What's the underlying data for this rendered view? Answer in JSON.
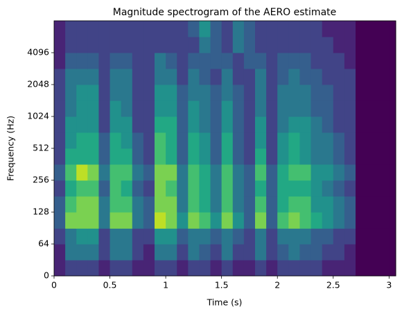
{
  "chart_data": {
    "type": "spectrogram",
    "title": "Magnitude spectrogram of the AERO estimate",
    "x_label": "Time (s)",
    "y_label": "Frequency (Hz)",
    "colormap": "viridis",
    "y_scale": "symlog2",
    "y_linthresh": 64,
    "xlim": [
      0,
      3.06
    ],
    "ylim": [
      0,
      8192
    ],
    "xticks": [
      0,
      0.5,
      1,
      1.5,
      2,
      2.5,
      3
    ],
    "yticks": [
      0,
      64,
      128,
      256,
      512,
      1024,
      2048,
      4096
    ],
    "x_edges": [
      0,
      0.1,
      0.2,
      0.3,
      0.4,
      0.5,
      0.6,
      0.7,
      0.8,
      0.9,
      1.0,
      1.1,
      1.2,
      1.3,
      1.4,
      1.5,
      1.6,
      1.7,
      1.8,
      1.9,
      2.0,
      2.1,
      2.2,
      2.3,
      2.4,
      2.5,
      2.6,
      2.7,
      2.8,
      2.9,
      3.0,
      3.06
    ],
    "y_edges": [
      0,
      32,
      64,
      90,
      128,
      181,
      256,
      362,
      512,
      724,
      1024,
      1448,
      2048,
      2896,
      4096,
      5793,
      8192
    ],
    "values": [
      [
        0.1,
        0.2,
        0.2,
        0.2,
        0.1,
        0.2,
        0.2,
        0.1,
        0.1,
        0.2,
        0.2,
        0.1,
        0.2,
        0.2,
        0.1,
        0.2,
        0.1,
        0.1,
        0.2,
        0.1,
        0.2,
        0.2,
        0.2,
        0.2,
        0.1,
        0.1,
        0.1,
        0,
        0,
        0,
        0
      ],
      [
        0.1,
        0.4,
        0.4,
        0.4,
        0.2,
        0.4,
        0.4,
        0.2,
        0.1,
        0.4,
        0.4,
        0.2,
        0.4,
        0.3,
        0.2,
        0.4,
        0.2,
        0.2,
        0.4,
        0.2,
        0.3,
        0.4,
        0.3,
        0.3,
        0.2,
        0.2,
        0.1,
        0,
        0,
        0,
        0
      ],
      [
        0.2,
        0.4,
        0.5,
        0.5,
        0.2,
        0.4,
        0.4,
        0.2,
        0.2,
        0.5,
        0.5,
        0.3,
        0.4,
        0.4,
        0.3,
        0.4,
        0.3,
        0.2,
        0.4,
        0.2,
        0.4,
        0.4,
        0.4,
        0.3,
        0.3,
        0.2,
        0.2,
        0,
        0,
        0,
        0
      ],
      [
        0.3,
        0.8,
        0.8,
        0.8,
        0.4,
        0.8,
        0.8,
        0.4,
        0.3,
        0.9,
        0.8,
        0.5,
        0.8,
        0.7,
        0.5,
        0.8,
        0.5,
        0.3,
        0.8,
        0.3,
        0.7,
        0.8,
        0.7,
        0.6,
        0.5,
        0.4,
        0.3,
        0,
        0,
        0,
        0
      ],
      [
        0.3,
        0.7,
        0.8,
        0.8,
        0.4,
        0.7,
        0.7,
        0.4,
        0.3,
        0.8,
        0.8,
        0.4,
        0.7,
        0.6,
        0.4,
        0.7,
        0.4,
        0.3,
        0.7,
        0.3,
        0.6,
        0.7,
        0.7,
        0.5,
        0.5,
        0.4,
        0.3,
        0,
        0,
        0,
        0
      ],
      [
        0.2,
        0.6,
        0.7,
        0.7,
        0.3,
        0.7,
        0.6,
        0.3,
        0.2,
        0.8,
        0.7,
        0.4,
        0.7,
        0.6,
        0.4,
        0.7,
        0.4,
        0.3,
        0.6,
        0.3,
        0.6,
        0.6,
        0.6,
        0.5,
        0.4,
        0.3,
        0.2,
        0,
        0,
        0,
        0
      ],
      [
        0.3,
        0.7,
        0.9,
        0.8,
        0.4,
        0.7,
        0.7,
        0.4,
        0.3,
        0.8,
        0.8,
        0.4,
        0.7,
        0.6,
        0.4,
        0.7,
        0.4,
        0.3,
        0.7,
        0.3,
        0.6,
        0.7,
        0.7,
        0.5,
        0.5,
        0.4,
        0.3,
        0,
        0,
        0,
        0
      ],
      [
        0.2,
        0.6,
        0.6,
        0.6,
        0.3,
        0.6,
        0.6,
        0.3,
        0.2,
        0.7,
        0.6,
        0.3,
        0.6,
        0.5,
        0.3,
        0.6,
        0.3,
        0.2,
        0.6,
        0.2,
        0.5,
        0.6,
        0.5,
        0.4,
        0.4,
        0.3,
        0.2,
        0,
        0,
        0,
        0
      ],
      [
        0.2,
        0.5,
        0.6,
        0.6,
        0.3,
        0.6,
        0.5,
        0.3,
        0.2,
        0.7,
        0.6,
        0.3,
        0.6,
        0.5,
        0.3,
        0.6,
        0.3,
        0.2,
        0.5,
        0.2,
        0.5,
        0.6,
        0.5,
        0.4,
        0.4,
        0.3,
        0.2,
        0,
        0,
        0,
        0
      ],
      [
        0.2,
        0.5,
        0.5,
        0.5,
        0.2,
        0.5,
        0.5,
        0.2,
        0.2,
        0.6,
        0.6,
        0.3,
        0.5,
        0.4,
        0.3,
        0.5,
        0.3,
        0.2,
        0.5,
        0.2,
        0.4,
        0.5,
        0.5,
        0.4,
        0.3,
        0.2,
        0.2,
        0,
        0,
        0,
        0
      ],
      [
        0.2,
        0.4,
        0.5,
        0.5,
        0.2,
        0.5,
        0.4,
        0.2,
        0.2,
        0.5,
        0.5,
        0.3,
        0.5,
        0.4,
        0.3,
        0.5,
        0.3,
        0.2,
        0.4,
        0.2,
        0.4,
        0.4,
        0.4,
        0.3,
        0.3,
        0.2,
        0.2,
        0,
        0,
        0,
        0
      ],
      [
        0.2,
        0.4,
        0.5,
        0.5,
        0.2,
        0.4,
        0.4,
        0.2,
        0.2,
        0.5,
        0.5,
        0.3,
        0.4,
        0.4,
        0.3,
        0.4,
        0.3,
        0.2,
        0.4,
        0.2,
        0.4,
        0.4,
        0.4,
        0.3,
        0.3,
        0.2,
        0.2,
        0,
        0,
        0,
        0
      ],
      [
        0.2,
        0.4,
        0.4,
        0.4,
        0.2,
        0.4,
        0.4,
        0.2,
        0.2,
        0.4,
        0.4,
        0.2,
        0.4,
        0.3,
        0.2,
        0.4,
        0.2,
        0.2,
        0.4,
        0.2,
        0.3,
        0.4,
        0.3,
        0.3,
        0.2,
        0.2,
        0.2,
        0,
        0,
        0,
        0
      ],
      [
        0.1,
        0.3,
        0.3,
        0.3,
        0.2,
        0.3,
        0.3,
        0.2,
        0.2,
        0.4,
        0.3,
        0.2,
        0.3,
        0.3,
        0.3,
        0.3,
        0.2,
        0.3,
        0.3,
        0.2,
        0.3,
        0.3,
        0.3,
        0.2,
        0.2,
        0.2,
        0.1,
        0,
        0,
        0,
        0
      ],
      [
        0.1,
        0.2,
        0.2,
        0.2,
        0.2,
        0.2,
        0.2,
        0.2,
        0.2,
        0.2,
        0.2,
        0.2,
        0.2,
        0.4,
        0.3,
        0.2,
        0.4,
        0.3,
        0.2,
        0.2,
        0.2,
        0.2,
        0.2,
        0.2,
        0.2,
        0.1,
        0.1,
        0,
        0,
        0,
        0
      ],
      [
        0.1,
        0.2,
        0.2,
        0.2,
        0.2,
        0.2,
        0.2,
        0.2,
        0.2,
        0.2,
        0.2,
        0.2,
        0.3,
        0.5,
        0.3,
        0.2,
        0.4,
        0.3,
        0.2,
        0.2,
        0.2,
        0.2,
        0.2,
        0.2,
        0.1,
        0.1,
        0.1,
        0,
        0,
        0,
        0
      ]
    ]
  }
}
